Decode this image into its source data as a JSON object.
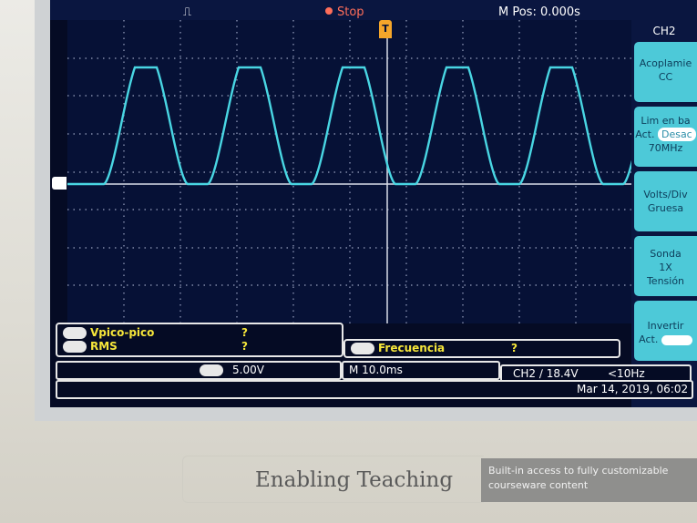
{
  "top_bar": {
    "trigger_icon": "square-pulse-icon",
    "run_state": "Stop",
    "horizontal_position": "M Pos: 0.000s"
  },
  "trigger_marker": "T",
  "channel_menu": {
    "title": "CH2",
    "items": [
      {
        "lines": [
          "Acoplamie",
          "CC"
        ]
      },
      {
        "lines": [
          "Lim en ba",
          "Desac",
          "70MHz"
        ],
        "prefix": "Act."
      },
      {
        "lines": [
          "Volts/Div",
          "Gruesa"
        ]
      },
      {
        "lines": [
          "Sonda",
          "1X",
          "Tensión"
        ]
      },
      {
        "lines": [
          "Invertir"
        ],
        "prefix": "Act."
      }
    ]
  },
  "measurements": {
    "left": [
      {
        "label": "Vpico-pico",
        "value": "?"
      },
      {
        "label": "RMS",
        "value": "?"
      }
    ],
    "right": {
      "label": "Frecuencia",
      "value": "?"
    }
  },
  "status": {
    "ch_scale": "5.00V",
    "timebase": "M 10.0ms",
    "trigger": "CH2 ∕ 18.4V",
    "trigger_freq": "<10Hz",
    "datetime": "Mar 14, 2019, 06:02"
  },
  "device": {
    "brand_tagline": "Enabling Teaching",
    "banner": "Built-in access to fully customizable courseware content"
  },
  "colors": {
    "trace": "#49d6e3",
    "menu_button": "#4dc9d8",
    "measurement_text": "#f6e63a",
    "stop_text": "#ff6e5a",
    "trigger_marker": "#f5a62a"
  }
}
